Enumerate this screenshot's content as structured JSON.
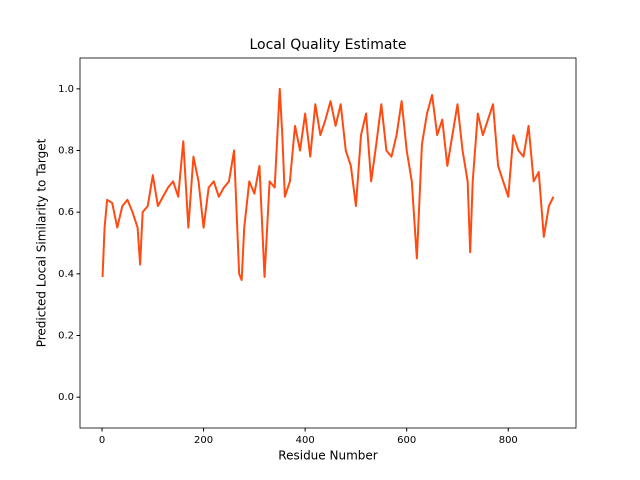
{
  "chart_data": {
    "type": "line",
    "title": "Local Quality Estimate",
    "xlabel": "Residue Number",
    "ylabel": "Predicted Local Similarity to Target",
    "x": [
      1,
      5,
      10,
      20,
      30,
      40,
      50,
      60,
      70,
      75,
      80,
      90,
      100,
      110,
      120,
      130,
      140,
      150,
      160,
      170,
      180,
      190,
      200,
      210,
      220,
      230,
      240,
      250,
      260,
      270,
      275,
      280,
      290,
      300,
      310,
      320,
      330,
      340,
      350,
      355,
      360,
      370,
      380,
      390,
      400,
      410,
      420,
      430,
      440,
      450,
      460,
      470,
      480,
      490,
      500,
      510,
      520,
      530,
      540,
      550,
      560,
      570,
      580,
      590,
      600,
      610,
      620,
      630,
      640,
      650,
      660,
      670,
      680,
      690,
      700,
      710,
      720,
      725,
      730,
      740,
      750,
      760,
      770,
      780,
      790,
      800,
      810,
      820,
      830,
      840,
      850,
      860,
      870,
      880,
      889
    ],
    "values": [
      0.39,
      0.55,
      0.64,
      0.63,
      0.55,
      0.62,
      0.64,
      0.6,
      0.55,
      0.43,
      0.6,
      0.62,
      0.72,
      0.62,
      0.65,
      0.68,
      0.7,
      0.65,
      0.83,
      0.55,
      0.78,
      0.7,
      0.55,
      0.68,
      0.7,
      0.65,
      0.68,
      0.7,
      0.8,
      0.4,
      0.38,
      0.55,
      0.7,
      0.66,
      0.75,
      0.39,
      0.7,
      0.68,
      1.0,
      0.85,
      0.65,
      0.7,
      0.88,
      0.8,
      0.92,
      0.78,
      0.95,
      0.85,
      0.9,
      0.96,
      0.88,
      0.95,
      0.8,
      0.75,
      0.62,
      0.85,
      0.92,
      0.7,
      0.82,
      0.95,
      0.8,
      0.78,
      0.85,
      0.96,
      0.8,
      0.7,
      0.45,
      0.82,
      0.92,
      0.98,
      0.85,
      0.9,
      0.75,
      0.85,
      0.95,
      0.8,
      0.7,
      0.47,
      0.7,
      0.92,
      0.85,
      0.9,
      0.95,
      0.75,
      0.7,
      0.65,
      0.85,
      0.8,
      0.78,
      0.88,
      0.7,
      0.73,
      0.52,
      0.62,
      0.65
    ],
    "color": "#ff4b12",
    "xlim": [
      -43.4,
      933.4
    ],
    "xticks": [
      0,
      200,
      400,
      600,
      800
    ],
    "ylim": [
      -0.1,
      1.1
    ],
    "yticks": [
      {
        "value": 0,
        "label": "0.0"
      },
      0.2,
      0.4,
      0.6,
      0.8,
      {
        "value": 1,
        "label": "1.0"
      }
    ],
    "grid": false
  }
}
